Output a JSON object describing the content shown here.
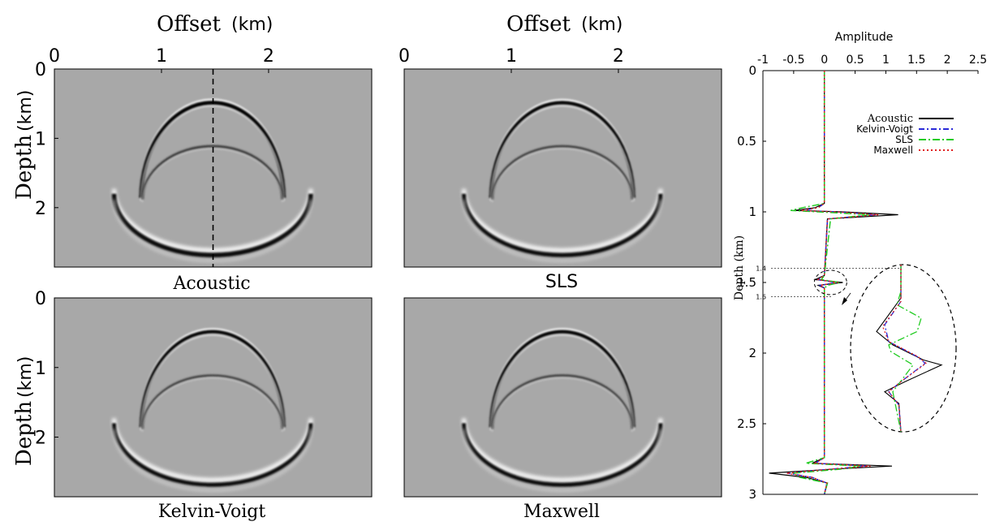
{
  "panels": [
    {
      "id": "acoustic",
      "caption": "Acoustic",
      "caption_font": "serif",
      "ring_strength": 1.0,
      "dashed_trace": true,
      "top_axis": true,
      "left_axis": true
    },
    {
      "id": "sls",
      "caption": "SLS",
      "caption_font": "sans",
      "ring_strength": 0.78,
      "dashed_trace": false,
      "top_axis": true,
      "left_axis": false
    },
    {
      "id": "kelvin-voigt",
      "caption": "Kelvin-Voigt",
      "caption_font": "serif",
      "ring_strength": 0.72,
      "dashed_trace": false,
      "top_axis": false,
      "left_axis": true
    },
    {
      "id": "maxwell",
      "caption": "Maxwell",
      "caption_font": "serif",
      "ring_strength": 0.74,
      "dashed_trace": false,
      "top_axis": false,
      "left_axis": false
    }
  ],
  "offset_label": "Offset",
  "offset_unit": "(km)",
  "depth_label": "Depth",
  "depth_unit": "(km)",
  "offset_ticks": [
    "0",
    "1",
    "2"
  ],
  "depth_ticks": [
    "0",
    "1",
    "2"
  ],
  "colors": {
    "background": "#a8a8a8",
    "acoustic": "#000000",
    "kelvin_voigt": "#2a2ad8",
    "sls": "#22cc22",
    "maxwell": "#e02020"
  },
  "chart_data": {
    "type": "line",
    "xlabel": "Amplitude",
    "ylabel": "Depth (km)",
    "xlim": [
      -1,
      2.5
    ],
    "ylim": [
      3,
      0
    ],
    "x_ticks": [
      "-1",
      "-0.5",
      "0",
      "0.5",
      "1",
      "1.5",
      "2",
      "2.5"
    ],
    "y_ticks": [
      "0",
      "0.5",
      "1",
      "1.5",
      "2",
      "2.5",
      "3"
    ],
    "inset_ticks": [
      "1.4",
      "1.6"
    ],
    "legend": "top-right",
    "series": [
      {
        "name": "Acoustic",
        "color": "#000000",
        "dash": "",
        "depth": [
          0,
          0.94,
          0.97,
          0.99,
          1.0,
          1.02,
          1.05,
          1.45,
          1.48,
          1.5,
          1.52,
          1.54,
          2.74,
          2.78,
          2.8,
          2.82,
          2.85,
          2.88,
          2.92,
          3.0
        ],
        "amplitude": [
          0,
          0,
          -0.15,
          -0.5,
          0.3,
          1.2,
          0.05,
          0,
          -0.15,
          0.3,
          -0.1,
          0,
          0,
          -0.2,
          1.1,
          0.2,
          -0.9,
          -0.3,
          0.05,
          0
        ]
      },
      {
        "name": "Kelvin-Voigt",
        "color": "#2a2ad8",
        "dash": "7 3 2 3",
        "depth": [
          0,
          0.94,
          0.97,
          0.99,
          1.0,
          1.02,
          1.05,
          1.45,
          1.48,
          1.5,
          1.52,
          1.54,
          2.74,
          2.78,
          2.8,
          2.82,
          2.85,
          2.88,
          2.92,
          3.0
        ],
        "amplitude": [
          0,
          0,
          -0.1,
          -0.35,
          0.2,
          0.85,
          0.05,
          0,
          -0.1,
          0.2,
          -0.07,
          0,
          0,
          -0.15,
          0.7,
          0.15,
          -0.6,
          -0.2,
          0.04,
          0
        ]
      },
      {
        "name": "SLS",
        "color": "#22cc22",
        "dash": "9 3 2 3",
        "depth": [
          0,
          0.94,
          0.97,
          0.99,
          1.0,
          1.02,
          1.05,
          1.45,
          1.48,
          1.5,
          1.52,
          1.54,
          2.74,
          2.78,
          2.8,
          2.82,
          2.85,
          2.88,
          2.92,
          3.0
        ],
        "amplitude": [
          0,
          0,
          -0.35,
          -0.55,
          -0.1,
          0.75,
          0.1,
          0,
          -0.05,
          0.25,
          0.05,
          0,
          0,
          -0.3,
          0.6,
          0.3,
          -0.5,
          -0.4,
          0.05,
          0
        ]
      },
      {
        "name": "Maxwell",
        "color": "#e02020",
        "dash": "2 3",
        "depth": [
          0,
          0.94,
          0.97,
          0.99,
          1.0,
          1.02,
          1.05,
          1.45,
          1.48,
          1.5,
          1.52,
          1.54,
          2.74,
          2.78,
          2.8,
          2.82,
          2.85,
          2.88,
          2.92,
          3.0
        ],
        "amplitude": [
          0,
          0,
          -0.1,
          -0.38,
          0.2,
          0.88,
          0.05,
          0,
          -0.1,
          0.22,
          -0.07,
          0,
          0,
          -0.15,
          0.75,
          0.15,
          -0.62,
          -0.2,
          0.04,
          0
        ]
      }
    ]
  }
}
